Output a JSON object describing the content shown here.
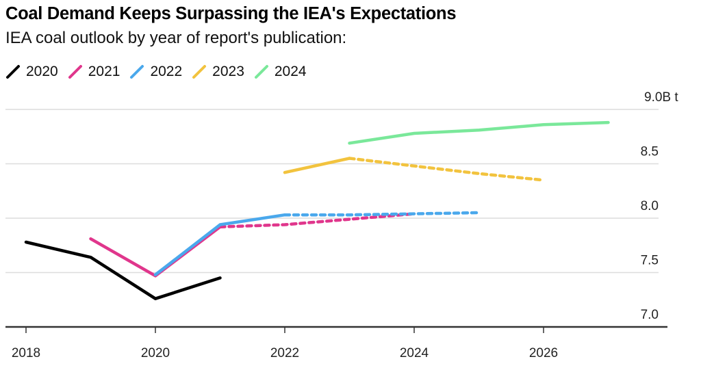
{
  "chart_data": {
    "type": "line",
    "title": "Coal Demand Keeps Surpassing the IEA's Expectations",
    "subtitle": "IEA coal outlook by year of report's publication:",
    "xlabel": "",
    "ylabel": "",
    "x_range": [
      2018,
      2027.9
    ],
    "ylim": [
      7.0,
      9.0
    ],
    "x_ticks": [
      2018,
      2020,
      2022,
      2024,
      2026
    ],
    "x_tick_labels": [
      "2018",
      "2020",
      "2022",
      "2024",
      "2026"
    ],
    "y_ticks": [
      9.0,
      8.5,
      8.0,
      7.5,
      7.0
    ],
    "y_tick_labels": [
      "9.0B t",
      "8.5",
      "8.0",
      "7.5",
      "7.0"
    ],
    "grid": true,
    "legend_position": "top-left",
    "series": [
      {
        "name": "2020",
        "color": "#000000",
        "actual": [
          [
            2018,
            7.78
          ],
          [
            2019,
            7.64
          ],
          [
            2020,
            7.26
          ],
          [
            2021,
            7.45
          ]
        ],
        "forecast": []
      },
      {
        "name": "2021",
        "color": "#e0368c",
        "actual": [
          [
            2019,
            7.81
          ],
          [
            2020,
            7.47
          ],
          [
            2021,
            7.92
          ]
        ],
        "forecast": [
          [
            2021,
            7.92
          ],
          [
            2022,
            7.94
          ],
          [
            2023,
            7.99
          ],
          [
            2024,
            8.04
          ]
        ]
      },
      {
        "name": "2022",
        "color": "#4aa8ec",
        "actual": [
          [
            2020,
            7.48
          ],
          [
            2021,
            7.94
          ],
          [
            2022,
            8.03
          ]
        ],
        "forecast": [
          [
            2022,
            8.03
          ],
          [
            2023,
            8.03
          ],
          [
            2024,
            8.04
          ],
          [
            2025,
            8.05
          ]
        ]
      },
      {
        "name": "2023",
        "color": "#f2c33e",
        "actual": [
          [
            2022,
            8.42
          ],
          [
            2023,
            8.55
          ]
        ],
        "forecast": [
          [
            2023,
            8.55
          ],
          [
            2024,
            8.48
          ],
          [
            2025,
            8.41
          ],
          [
            2026,
            8.35
          ]
        ]
      },
      {
        "name": "2024",
        "color": "#7ae89a",
        "actual": [
          [
            2023,
            8.69
          ],
          [
            2024,
            8.78
          ],
          [
            2025,
            8.81
          ],
          [
            2026,
            8.86
          ],
          [
            2027,
            8.88
          ]
        ],
        "forecast": []
      }
    ]
  }
}
